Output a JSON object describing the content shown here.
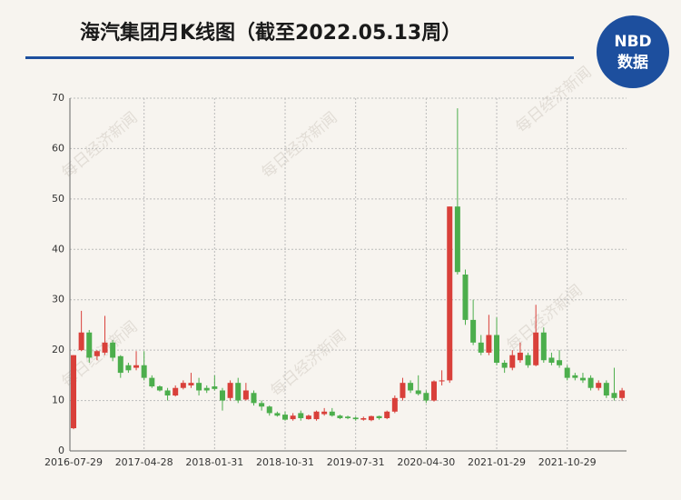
{
  "chart_data": {
    "type": "candlestick",
    "title": "海汽集团月K线图（截至2022.05.13周）",
    "logo": {
      "top": "NBD",
      "bottom": "数据"
    },
    "watermark": "每日经济新闻",
    "categories": [
      "2016-07-29",
      null,
      null,
      null,
      null,
      null,
      null,
      null,
      null,
      "2017-04-28",
      null,
      null,
      null,
      null,
      null,
      null,
      null,
      null,
      "2018-01-31",
      null,
      null,
      null,
      null,
      null,
      null,
      null,
      null,
      "2018-10-31",
      null,
      null,
      null,
      null,
      null,
      null,
      null,
      null,
      "2019-07-31",
      null,
      null,
      null,
      null,
      null,
      null,
      null,
      null,
      "2020-04-30",
      null,
      null,
      null,
      null,
      null,
      null,
      null,
      null,
      "2021-01-29",
      null,
      null,
      null,
      null,
      null,
      null,
      null,
      null,
      "2021-10-29",
      null,
      null,
      null,
      null,
      null,
      null,
      null
    ],
    "series": [
      {
        "up_color": "#d9403a",
        "down_color": "#4cae4c",
        "open": [
          4.5,
          20,
          23.5,
          18.8,
          19.5,
          21.5,
          18.8,
          17,
          16.5,
          17,
          14.5,
          12.8,
          12,
          11,
          12.5,
          13,
          13.5,
          12.5,
          12.8,
          12,
          10.5,
          13.5,
          10.2,
          11.5,
          9.5,
          8.8,
          7.5,
          7.2,
          6.3,
          7.5,
          6.3,
          6.3,
          7.3,
          7.8,
          7,
          6.8,
          6.6,
          6.2,
          6.1,
          6.9,
          6.5,
          7.8,
          10.5,
          13.5,
          12,
          11.5,
          10,
          13.8,
          14,
          48.5,
          35,
          26,
          21.5,
          19.5,
          23,
          17.5,
          16.5,
          18,
          19,
          17,
          23.5,
          18.5,
          18,
          16.5,
          15,
          14.5,
          14.5,
          12.5,
          13.5,
          11.5,
          10.5
        ],
        "high": [
          19,
          27.8,
          24,
          20,
          26.8,
          22,
          19,
          17.5,
          19.8,
          19.8,
          15,
          13,
          12.5,
          13,
          14,
          15.5,
          14.5,
          13,
          15,
          12.5,
          14,
          14.5,
          13.5,
          12,
          10,
          9,
          7.8,
          7.8,
          7.5,
          8,
          7.2,
          8,
          8.5,
          8.5,
          7.2,
          7,
          6.8,
          6.8,
          7,
          7,
          8,
          11,
          14.5,
          14,
          15,
          12,
          14,
          16,
          48.5,
          68,
          36,
          30,
          23,
          27,
          26.5,
          18,
          20,
          21.5,
          19.5,
          29,
          24.5,
          19.5,
          20,
          17,
          15.5,
          15.5,
          15,
          14,
          14,
          16.5,
          12.5
        ],
        "low": [
          4.3,
          19.8,
          17.5,
          18,
          19,
          17.8,
          14.5,
          15.5,
          16,
          14,
          12.5,
          11.8,
          10,
          10.8,
          12.2,
          12.5,
          11,
          11.5,
          12,
          8,
          10,
          9.5,
          10,
          9,
          8,
          7,
          6.8,
          6,
          6,
          6,
          6.2,
          6,
          7,
          6.8,
          6.3,
          6.3,
          6,
          6,
          5.9,
          6.2,
          6.3,
          7.5,
          10,
          11.5,
          11,
          9.5,
          9.8,
          13,
          13.5,
          35,
          25,
          21,
          19,
          19,
          17,
          15.5,
          16,
          17.5,
          16.5,
          16.8,
          17.5,
          17,
          16.5,
          14,
          14,
          13.5,
          12,
          12,
          10.5,
          10,
          10
        ],
        "close": [
          19,
          23.5,
          18.5,
          19.8,
          21.5,
          18.5,
          15.5,
          16,
          17,
          14.5,
          12.8,
          12,
          11,
          12.5,
          13.5,
          13.5,
          12,
          12,
          12.3,
          10,
          13.5,
          10,
          12,
          9.5,
          8.8,
          7.5,
          7,
          6.2,
          7,
          6.5,
          7,
          7.8,
          7.8,
          7,
          6.5,
          6.5,
          6.3,
          6.5,
          6.9,
          6.5,
          7.8,
          10.5,
          13.5,
          12,
          11.3,
          10,
          13.8,
          14,
          48.5,
          35.5,
          26,
          21.5,
          19.5,
          23,
          17.5,
          16.5,
          19,
          19.5,
          17,
          23.5,
          18,
          17.5,
          17,
          14.5,
          14.5,
          14,
          12.5,
          13.5,
          11,
          10.5,
          12
        ]
      }
    ],
    "ylim": [
      0,
      70
    ],
    "yticks": [
      0,
      10,
      20,
      30,
      40,
      50,
      60,
      70
    ],
    "grid": true
  }
}
